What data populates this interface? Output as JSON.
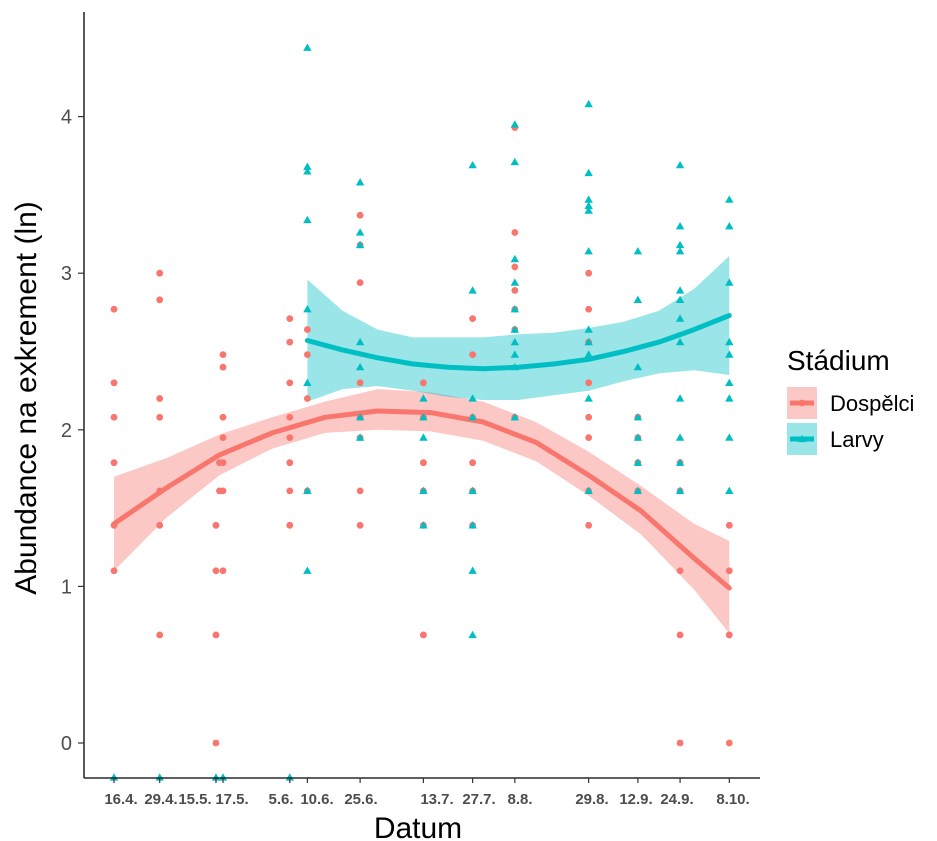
{
  "chart_data": {
    "type": "scatter",
    "xlabel": "Datum",
    "ylabel": "Abundance na exkrement (ln)",
    "x_tick_labels": [
      "16.4.",
      "29.4.",
      "15.5.",
      "17.5.",
      "5.6.",
      "10.6.",
      "25.6.",
      "13.7.",
      "27.7.",
      "8.8.",
      "29.8.",
      "12.9.",
      "24.9.",
      "8.10."
    ],
    "x_ticks": [
      {
        "label": "16.4.",
        "x": 106
      },
      {
        "label": "29.4.",
        "x": 119
      },
      {
        "label": "15.5.",
        "x": 135
      },
      {
        "label": "17.5.",
        "x": 137
      },
      {
        "label": "5.6.",
        "x": 156
      },
      {
        "label": "10.6.",
        "x": 161
      },
      {
        "label": "25.6.",
        "x": 176
      },
      {
        "label": "13.7.",
        "x": 194
      },
      {
        "label": "27.7.",
        "x": 208
      },
      {
        "label": "8.8.",
        "x": 220
      },
      {
        "label": "29.8.",
        "x": 241
      },
      {
        "label": "12.9.",
        "x": 255
      },
      {
        "label": "24.9.",
        "x": 267
      },
      {
        "label": "8.10.",
        "x": 281
      }
    ],
    "xlim": [
      102,
      285
    ],
    "y_ticks": [
      0,
      1,
      2,
      3,
      4
    ],
    "ylim": [
      -0.22,
      4.6
    ],
    "grid": false,
    "legend": {
      "title": "Stádium",
      "position": "right",
      "entries": [
        "Dospělci",
        "Larvy"
      ]
    },
    "colors": {
      "Dospělci": "#F8766D",
      "Larvy": "#00BFC4"
    },
    "series": [
      {
        "name": "Dospělci",
        "marker": "circle",
        "points": [
          [
            106,
            2.77
          ],
          [
            106,
            2.3
          ],
          [
            106,
            2.08
          ],
          [
            106,
            1.79
          ],
          [
            106,
            1.39
          ],
          [
            106,
            1.1
          ],
          [
            119,
            3.0
          ],
          [
            119,
            2.83
          ],
          [
            119,
            2.2
          ],
          [
            119,
            2.08
          ],
          [
            119,
            1.61
          ],
          [
            119,
            1.39
          ],
          [
            119,
            0.69
          ],
          [
            137,
            2.48
          ],
          [
            137,
            2.4
          ],
          [
            137,
            2.08
          ],
          [
            137,
            1.95
          ],
          [
            137,
            1.79
          ],
          [
            137,
            1.61
          ],
          [
            137,
            1.1
          ],
          [
            135,
            1.39
          ],
          [
            135,
            1.1
          ],
          [
            135,
            0.69
          ],
          [
            135,
            0.0
          ],
          [
            136,
            1.79
          ],
          [
            136,
            1.61
          ],
          [
            156,
            2.71
          ],
          [
            156,
            2.56
          ],
          [
            156,
            2.3
          ],
          [
            156,
            2.08
          ],
          [
            156,
            1.95
          ],
          [
            156,
            1.79
          ],
          [
            156,
            1.61
          ],
          [
            156,
            1.39
          ],
          [
            161,
            2.64
          ],
          [
            161,
            2.48
          ],
          [
            161,
            2.2
          ],
          [
            161,
            1.61
          ],
          [
            176,
            3.37
          ],
          [
            176,
            3.18
          ],
          [
            176,
            2.94
          ],
          [
            176,
            2.3
          ],
          [
            176,
            2.08
          ],
          [
            176,
            1.95
          ],
          [
            176,
            1.61
          ],
          [
            176,
            1.39
          ],
          [
            194,
            2.3
          ],
          [
            194,
            2.08
          ],
          [
            194,
            1.79
          ],
          [
            194,
            1.61
          ],
          [
            194,
            1.39
          ],
          [
            194,
            0.69
          ],
          [
            208,
            2.71
          ],
          [
            208,
            2.48
          ],
          [
            208,
            2.08
          ],
          [
            208,
            1.79
          ],
          [
            208,
            1.61
          ],
          [
            208,
            1.39
          ],
          [
            220,
            3.93
          ],
          [
            220,
            3.26
          ],
          [
            220,
            3.04
          ],
          [
            220,
            2.89
          ],
          [
            220,
            2.77
          ],
          [
            220,
            2.64
          ],
          [
            220,
            2.08
          ],
          [
            241,
            3.0
          ],
          [
            241,
            2.77
          ],
          [
            241,
            2.56
          ],
          [
            241,
            2.3
          ],
          [
            241,
            2.08
          ],
          [
            241,
            1.95
          ],
          [
            241,
            1.61
          ],
          [
            241,
            1.39
          ],
          [
            255,
            2.08
          ],
          [
            255,
            1.95
          ],
          [
            255,
            1.79
          ],
          [
            255,
            1.61
          ],
          [
            267,
            1.79
          ],
          [
            267,
            1.61
          ],
          [
            267,
            1.1
          ],
          [
            267,
            0.69
          ],
          [
            267,
            0.0
          ],
          [
            281,
            1.39
          ],
          [
            281,
            1.1
          ],
          [
            281,
            0.69
          ],
          [
            281,
            0.0
          ]
        ],
        "fit": {
          "x": [
            106,
            121,
            136,
            151,
            166,
            181,
            196,
            211,
            226,
            241,
            256,
            271,
            281
          ],
          "y": [
            1.4,
            1.63,
            1.84,
            1.98,
            2.08,
            2.12,
            2.11,
            2.05,
            1.92,
            1.71,
            1.48,
            1.18,
            0.99
          ],
          "lower": [
            1.1,
            1.44,
            1.71,
            1.88,
            1.98,
            2.0,
            1.99,
            1.93,
            1.8,
            1.58,
            1.33,
            0.98,
            0.7
          ],
          "upper": [
            1.7,
            1.82,
            1.97,
            2.08,
            2.18,
            2.26,
            2.24,
            2.18,
            2.05,
            1.86,
            1.64,
            1.4,
            1.29
          ]
        }
      },
      {
        "name": "Larvy",
        "marker": "triangle",
        "points": [
          [
            106,
            -0.22
          ],
          [
            119,
            -0.22
          ],
          [
            135,
            -0.22
          ],
          [
            137,
            -0.22
          ],
          [
            156,
            -0.22
          ],
          [
            161,
            4.44
          ],
          [
            161,
            3.68
          ],
          [
            161,
            3.65
          ],
          [
            161,
            3.34
          ],
          [
            161,
            2.77
          ],
          [
            161,
            2.3
          ],
          [
            161,
            1.61
          ],
          [
            161,
            1.1
          ],
          [
            176,
            3.58
          ],
          [
            176,
            3.26
          ],
          [
            176,
            3.18
          ],
          [
            176,
            2.56
          ],
          [
            176,
            2.4
          ],
          [
            176,
            2.08
          ],
          [
            176,
            1.95
          ],
          [
            194,
            2.2
          ],
          [
            194,
            2.08
          ],
          [
            194,
            1.95
          ],
          [
            194,
            1.61
          ],
          [
            194,
            1.39
          ],
          [
            208,
            3.69
          ],
          [
            208,
            2.89
          ],
          [
            208,
            2.2
          ],
          [
            208,
            2.08
          ],
          [
            208,
            1.61
          ],
          [
            208,
            1.39
          ],
          [
            208,
            1.1
          ],
          [
            208,
            0.69
          ],
          [
            220,
            3.95
          ],
          [
            220,
            3.71
          ],
          [
            220,
            3.09
          ],
          [
            220,
            2.94
          ],
          [
            220,
            2.77
          ],
          [
            220,
            2.64
          ],
          [
            220,
            2.56
          ],
          [
            220,
            2.48
          ],
          [
            220,
            2.4
          ],
          [
            220,
            2.08
          ],
          [
            241,
            4.08
          ],
          [
            241,
            3.64
          ],
          [
            241,
            3.47
          ],
          [
            241,
            3.43
          ],
          [
            241,
            3.4
          ],
          [
            241,
            3.14
          ],
          [
            241,
            2.64
          ],
          [
            241,
            2.56
          ],
          [
            241,
            2.48
          ],
          [
            241,
            2.2
          ],
          [
            241,
            1.61
          ],
          [
            255,
            3.14
          ],
          [
            255,
            2.83
          ],
          [
            255,
            2.4
          ],
          [
            255,
            2.08
          ],
          [
            255,
            1.95
          ],
          [
            255,
            1.79
          ],
          [
            255,
            1.61
          ],
          [
            267,
            3.69
          ],
          [
            267,
            3.3
          ],
          [
            267,
            3.18
          ],
          [
            267,
            3.14
          ],
          [
            267,
            2.89
          ],
          [
            267,
            2.83
          ],
          [
            267,
            2.71
          ],
          [
            267,
            2.56
          ],
          [
            267,
            2.2
          ],
          [
            267,
            1.95
          ],
          [
            267,
            1.79
          ],
          [
            267,
            1.61
          ],
          [
            281,
            3.47
          ],
          [
            281,
            3.3
          ],
          [
            281,
            2.94
          ],
          [
            281,
            2.56
          ],
          [
            281,
            2.48
          ],
          [
            281,
            2.3
          ],
          [
            281,
            2.2
          ],
          [
            281,
            1.95
          ],
          [
            281,
            1.61
          ]
        ],
        "fit": {
          "x": [
            161,
            171,
            181,
            191,
            201,
            211,
            221,
            231,
            241,
            251,
            261,
            271,
            281
          ],
          "y": [
            2.57,
            2.51,
            2.46,
            2.42,
            2.4,
            2.39,
            2.4,
            2.42,
            2.45,
            2.5,
            2.56,
            2.64,
            2.73
          ],
          "lower": [
            2.18,
            2.26,
            2.28,
            2.25,
            2.21,
            2.19,
            2.19,
            2.22,
            2.25,
            2.31,
            2.36,
            2.38,
            2.35
          ],
          "upper": [
            2.96,
            2.76,
            2.64,
            2.59,
            2.59,
            2.59,
            2.61,
            2.62,
            2.65,
            2.69,
            2.76,
            2.9,
            3.11
          ]
        }
      }
    ]
  }
}
